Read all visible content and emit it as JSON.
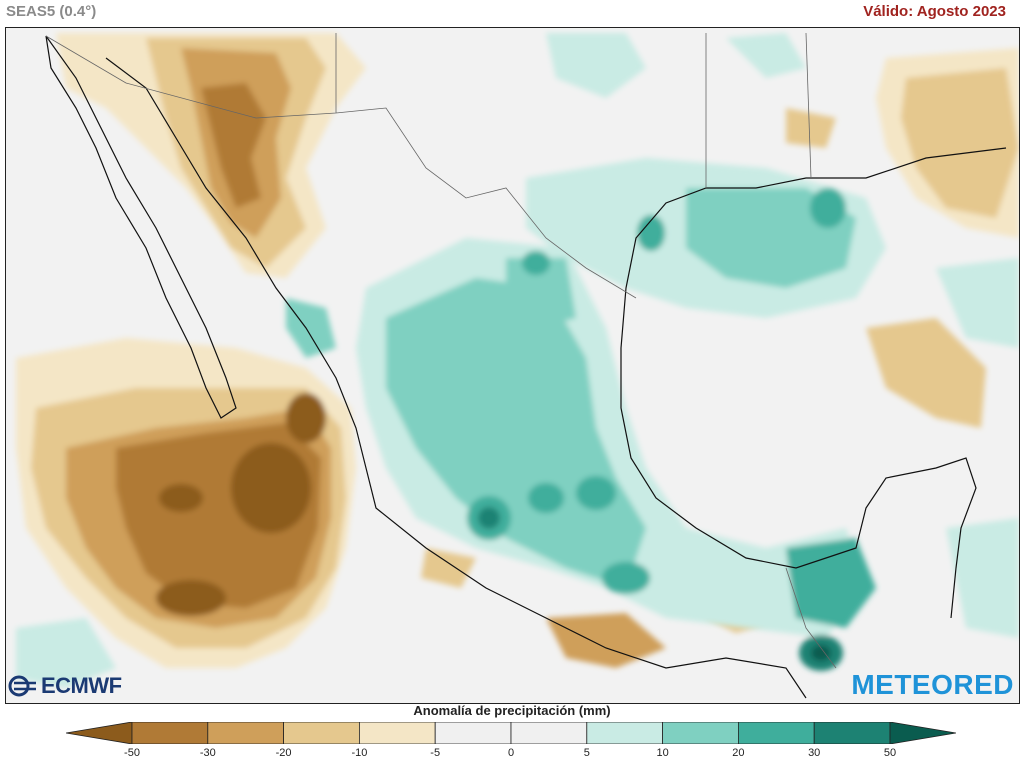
{
  "header": {
    "model": "SEAS5 (0.4°)",
    "valid": "Válido: Agosto 2023"
  },
  "logos": {
    "left": "ECMWF",
    "right": "METEORED"
  },
  "colorbar": {
    "title": "Anomalía de precipitación (mm)",
    "ticks": [
      "-50",
      "-30",
      "-20",
      "-10",
      "-5",
      "0",
      "5",
      "10",
      "20",
      "30",
      "50"
    ],
    "colors": [
      "#8c5b1c",
      "#b07a36",
      "#cf9f5a",
      "#e5c88e",
      "#f4e6c6",
      "#f0f0f0",
      "#f0f0f0",
      "#c9ebe4",
      "#7fd0c1",
      "#3fae9c",
      "#1d8273",
      "#0a5c4f"
    ]
  }
}
